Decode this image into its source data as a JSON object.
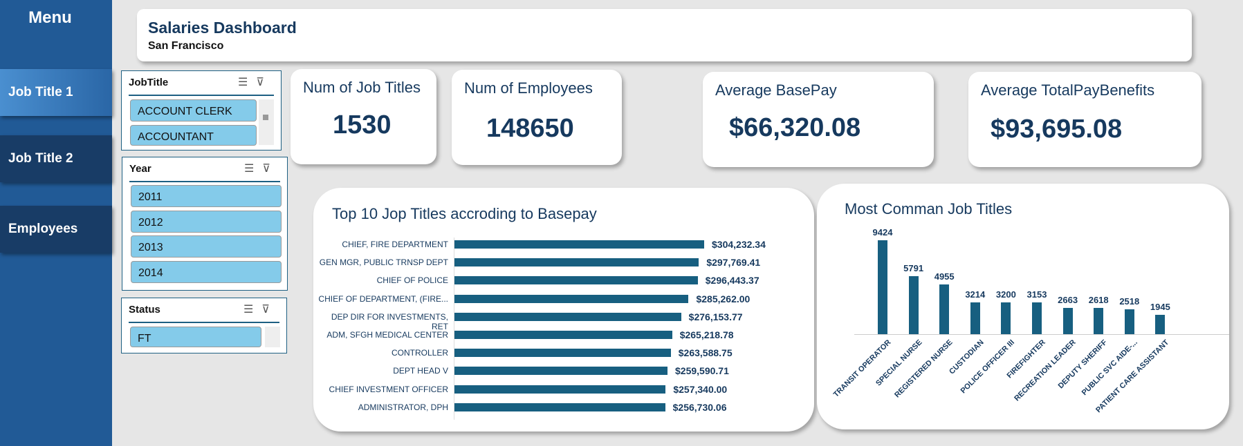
{
  "sidebar": {
    "title": "Menu",
    "items": [
      {
        "label": "Job Title 1"
      },
      {
        "label": "Job Title 2"
      },
      {
        "label": "Employees"
      }
    ]
  },
  "header": {
    "title": "Salaries Dashboard",
    "subtitle": "San Francisco"
  },
  "slicers": {
    "jobtitle": {
      "title": "JobTitle",
      "items": [
        "ACCOUNT CLERK",
        "ACCOUNTANT"
      ]
    },
    "year": {
      "title": "Year",
      "items": [
        "2011",
        "2012",
        "2013",
        "2014"
      ]
    },
    "status": {
      "title": "Status",
      "items": [
        "FT"
      ]
    }
  },
  "kpis": [
    {
      "label": "Num of Job Titles",
      "value": "1530"
    },
    {
      "label": "Num of Employees",
      "value": "148650"
    },
    {
      "label": "Average BasePay",
      "value": "$66,320.08"
    },
    {
      "label": "Average TotalPayBenefits",
      "value": "$93,695.08"
    }
  ],
  "colors": {
    "bar": "#175f80",
    "sidebar": "#215a96",
    "slicer_item": "#84cbea",
    "text": "#16395e"
  },
  "chart_data": [
    {
      "type": "bar",
      "orientation": "horizontal",
      "title": "Top 10 Jop Titles accroding to Basepay",
      "categories": [
        "CHIEF, FIRE DEPARTMENT",
        "GEN MGR, PUBLIC TRNSP DEPT",
        "CHIEF OF POLICE",
        "CHIEF OF DEPARTMENT, (FIRE...",
        "DEP DIR FOR INVESTMENTS, RET",
        "ADM, SFGH MEDICAL CENTER",
        "CONTROLLER",
        "DEPT HEAD V",
        "CHIEF INVESTMENT OFFICER",
        "ADMINISTRATOR, DPH"
      ],
      "values": [
        304232.34,
        297769.41,
        296443.37,
        285262.0,
        276153.77,
        265218.78,
        263588.75,
        259590.71,
        257340.0,
        256730.06
      ],
      "labels": [
        "$304,232.34",
        "$297,769.41",
        "$296,443.37",
        "$285,262.00",
        "$276,153.77",
        "$265,218.78",
        "$263,588.75",
        "$259,590.71",
        "$257,340.00",
        "$256,730.06"
      ]
    },
    {
      "type": "bar",
      "orientation": "vertical",
      "title": "Most Comman Job Titles",
      "categories": [
        "TRANSIT OPERATOR",
        "SPECIAL NURSE",
        "REGISTERED NURSE",
        "CUSTODIAN",
        "POLICE OFFICER III",
        "FIREFIGHTER",
        "RECREATION LEADER",
        "DEPUTY SHERIFF",
        "PUBLIC SVC AIDE-...",
        "PATIENT CARE ASSISTANT"
      ],
      "values": [
        9424,
        5791,
        4955,
        3214,
        3200,
        3153,
        2663,
        2618,
        2518,
        1945
      ]
    }
  ]
}
